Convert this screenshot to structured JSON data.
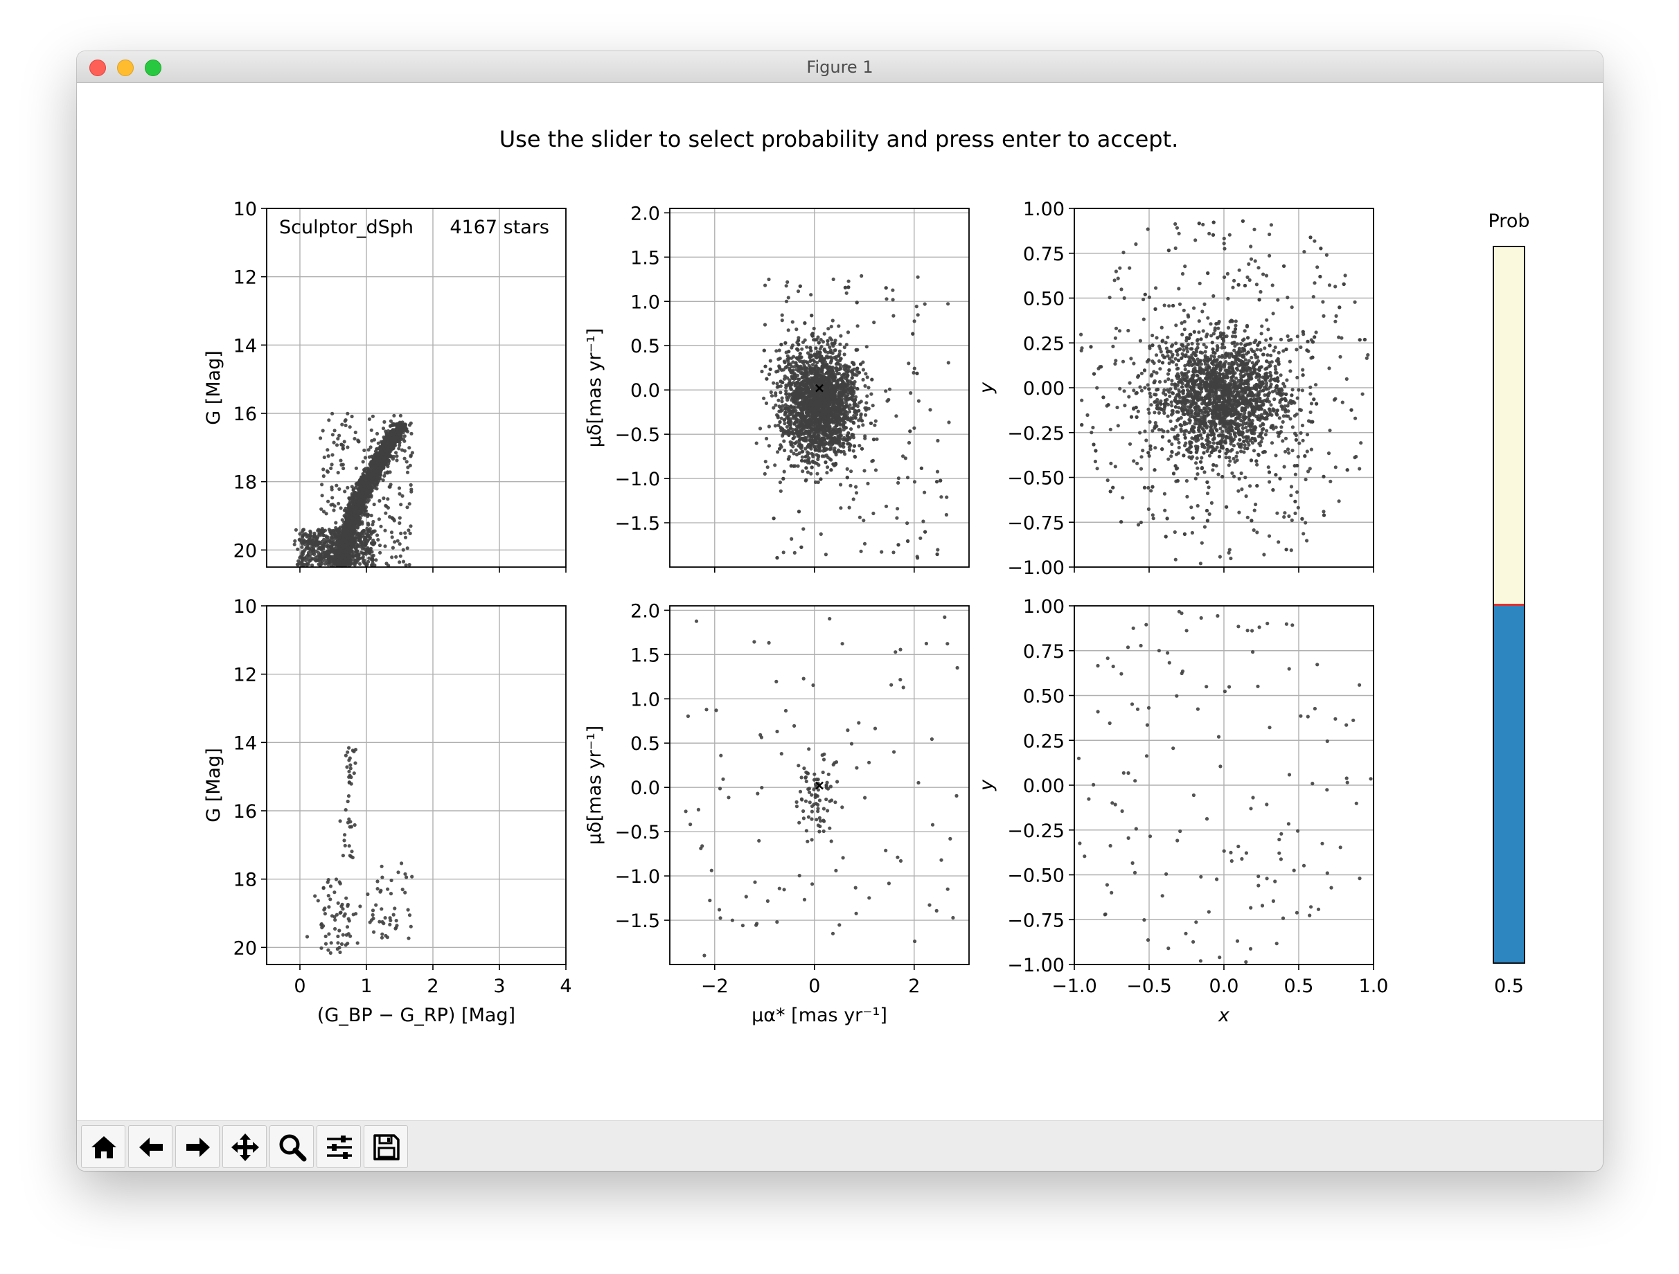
{
  "window": {
    "title": "Figure 1"
  },
  "figure": {
    "suptitle": "Use the slider to select probability and press enter to accept.",
    "label_name": "Sculptor_dSph",
    "label_count": "4167 stars"
  },
  "toolbar": {
    "buttons": [
      {
        "icon": "home-icon"
      },
      {
        "icon": "back-arrow-icon"
      },
      {
        "icon": "forward-arrow-icon"
      },
      {
        "icon": "pan-icon"
      },
      {
        "icon": "zoom-icon"
      },
      {
        "icon": "configure-subplots-icon"
      },
      {
        "icon": "save-icon"
      }
    ]
  },
  "slider": {
    "label": "Prob",
    "value": 0.5,
    "value_label": "0.5",
    "fill_color": "#2e86c1",
    "bg_color": "#fbf9dd",
    "marker_color": "#e03030"
  },
  "chart_data": [
    {
      "type": "scatter",
      "id": "cmd-top",
      "xlabel": "",
      "ylabel": "G [Mag]",
      "xlim": [
        -0.5,
        4
      ],
      "ylim": [
        20.5,
        10
      ],
      "yticks": [
        "10",
        "12",
        "14",
        "16",
        "18",
        "20"
      ],
      "xticks": [
        "0",
        "1",
        "2",
        "3",
        "4"
      ],
      "show_xticklabels": false,
      "grid": true,
      "point_color": "#404040",
      "n_points": 4167
    },
    {
      "type": "scatter",
      "id": "pm-top",
      "xlabel": "",
      "ylabel": "μδ[mas yr⁻¹]",
      "xlim": [
        -2.9,
        3.1
      ],
      "ylim": [
        -2.0,
        2.05
      ],
      "yticks": [
        "2.0",
        "1.5",
        "1.0",
        "0.5",
        "0.0",
        "−0.5",
        "−1.0",
        "−1.5"
      ],
      "xticks": [
        "−2",
        "0",
        "2"
      ],
      "show_xticklabels": false,
      "grid": true,
      "point_color": "#404040",
      "center_marker": [
        0.1,
        0.02
      ]
    },
    {
      "type": "scatter",
      "id": "xy-top",
      "xlabel": "",
      "ylabel": "y",
      "xlim": [
        -1.0,
        1.0
      ],
      "ylim": [
        -1.0,
        1.0
      ],
      "yticks": [
        "1.00",
        "0.75",
        "0.50",
        "0.25",
        "0.00",
        "−0.25",
        "−0.50",
        "−0.75",
        "−1.00"
      ],
      "xticks": [
        "−1.0",
        "−0.5",
        "0.0",
        "0.5",
        "1.0"
      ],
      "show_xticklabels": false,
      "grid": true,
      "point_color": "#404040"
    },
    {
      "type": "scatter",
      "id": "cmd-bottom",
      "xlabel": "(G_BP − G_RP) [Mag]",
      "ylabel": "G [Mag]",
      "xlim": [
        -0.5,
        4
      ],
      "ylim": [
        20.5,
        10
      ],
      "yticks": [
        "10",
        "12",
        "14",
        "16",
        "18",
        "20"
      ],
      "xticks": [
        "0",
        "1",
        "2",
        "3",
        "4"
      ],
      "show_xticklabels": true,
      "grid": true,
      "point_color": "#404040"
    },
    {
      "type": "scatter",
      "id": "pm-bottom",
      "xlabel": "μα* [mas yr⁻¹]",
      "ylabel": "μδ[mas yr⁻¹]",
      "xlim": [
        -2.9,
        3.1
      ],
      "ylim": [
        -2.0,
        2.05
      ],
      "yticks": [
        "2.0",
        "1.5",
        "1.0",
        "0.5",
        "0.0",
        "−0.5",
        "−1.0",
        "−1.5"
      ],
      "xticks": [
        "−2",
        "0",
        "2"
      ],
      "show_xticklabels": true,
      "grid": true,
      "point_color": "#404040",
      "center_marker": [
        0.1,
        0.02
      ]
    },
    {
      "type": "scatter",
      "id": "xy-bottom",
      "xlabel": "x",
      "ylabel": "y",
      "xlim": [
        -1.0,
        1.0
      ],
      "ylim": [
        -1.0,
        1.0
      ],
      "yticks": [
        "1.00",
        "0.75",
        "0.50",
        "0.25",
        "0.00",
        "−0.25",
        "−0.50",
        "−0.75",
        "−1.00"
      ],
      "xticks": [
        "−1.0",
        "−0.5",
        "0.0",
        "0.5",
        "1.0"
      ],
      "show_xticklabels": true,
      "grid": true,
      "point_color": "#404040"
    }
  ]
}
